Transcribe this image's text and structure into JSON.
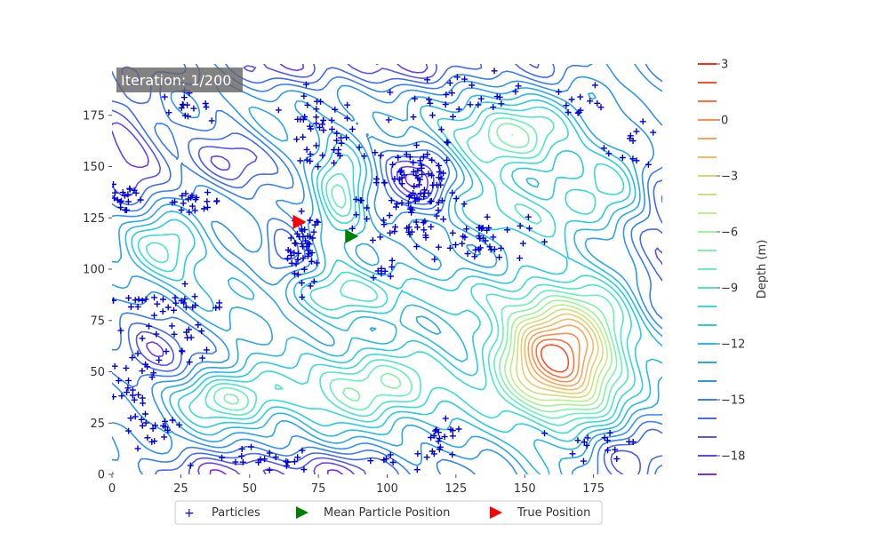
{
  "figure": {
    "iteration_text": "Iteration: 1/200"
  },
  "chart_data": {
    "type": "contour",
    "xlim": [
      0,
      200
    ],
    "ylim": [
      0,
      200
    ],
    "x_ticks": [
      0,
      25,
      50,
      75,
      100,
      125,
      150,
      175
    ],
    "y_ticks": [
      0,
      25,
      50,
      75,
      100,
      125,
      150,
      175
    ],
    "colorbar": {
      "label": "Depth (m)",
      "levels": [
        3,
        2,
        1,
        0,
        -1,
        -2,
        -3,
        -4,
        -5,
        -6,
        -7,
        -8,
        -9,
        -10,
        -11,
        -12,
        -13,
        -14,
        -15,
        -16,
        -17,
        -18,
        -19
      ],
      "labeled_ticks": [
        3,
        0,
        -3,
        -6,
        -9,
        -12,
        -15,
        -18
      ],
      "colormap": "rainbow",
      "cmap_colors": [
        "#ff2d16",
        "#ff8a46",
        "#f2c46d",
        "#b7f38a",
        "#66f2b8",
        "#29d2dc",
        "#2b9ef0",
        "#4466f5",
        "#7b2cf0"
      ]
    },
    "contour_levels_plot": [
      -19,
      -18,
      -17,
      -16,
      -15,
      -14,
      -13,
      -12,
      -11,
      -10,
      -9,
      -8,
      -7,
      -6,
      -5,
      -4,
      -3,
      -2,
      -1,
      0,
      1,
      2
    ],
    "surface_features": [
      {
        "type": "peak",
        "x": 163,
        "y": 58,
        "amp": 15.5,
        "sx": 16,
        "sy": 22
      },
      {
        "type": "peak",
        "x": 95,
        "y": 43,
        "amp": 6.5,
        "sx": 22,
        "sy": 13
      },
      {
        "type": "peak",
        "x": 43,
        "y": 37,
        "amp": 5.5,
        "sx": 14,
        "sy": 9
      },
      {
        "type": "peak",
        "x": 145,
        "y": 128,
        "amp": 4,
        "sx": 18,
        "sy": 10
      },
      {
        "type": "peak",
        "x": 142,
        "y": 165,
        "amp": 7,
        "sx": 16,
        "sy": 12
      },
      {
        "type": "peak",
        "x": 83,
        "y": 135,
        "amp": 5,
        "sx": 6,
        "sy": 22
      },
      {
        "type": "peak",
        "x": 20,
        "y": 110,
        "amp": 4.5,
        "sx": 10,
        "sy": 12
      },
      {
        "type": "peak",
        "x": 180,
        "y": 140,
        "amp": 3,
        "sx": 14,
        "sy": 14
      },
      {
        "type": "peak",
        "x": 95,
        "y": 88,
        "amp": 4,
        "sx": 30,
        "sy": 8
      },
      {
        "type": "pit",
        "x": 42,
        "y": 152,
        "amp": 5,
        "sx": 11,
        "sy": 10
      },
      {
        "type": "pit",
        "x": 62,
        "y": 110,
        "amp": 4,
        "sx": 6,
        "sy": 11
      },
      {
        "type": "pit",
        "x": 112,
        "y": 145,
        "amp": 5,
        "sx": 10,
        "sy": 12
      },
      {
        "type": "pit",
        "x": 15,
        "y": 60,
        "amp": 5,
        "sx": 10,
        "sy": 11
      },
      {
        "type": "pit",
        "x": 5,
        "y": 160,
        "amp": 5,
        "sx": 10,
        "sy": 22
      },
      {
        "type": "pit",
        "x": 60,
        "y": 0,
        "amp": 5,
        "sx": 40,
        "sy": 8
      },
      {
        "type": "pit",
        "x": 190,
        "y": 10,
        "amp": 4,
        "sx": 12,
        "sy": 12
      },
      {
        "type": "pit",
        "x": 200,
        "y": 120,
        "amp": 4,
        "sx": 8,
        "sy": 30
      },
      {
        "type": "pit",
        "x": 90,
        "y": 200,
        "amp": 4,
        "sx": 60,
        "sy": 8
      }
    ],
    "particles": {
      "name": "Particles",
      "marker": "+",
      "color": "#0000dd",
      "clusters": [
        {
          "x": 70,
          "y": 110,
          "sx": 3,
          "sy": 9,
          "n": 50
        },
        {
          "x": 75,
          "y": 165,
          "sx": 7,
          "sy": 10,
          "n": 45
        },
        {
          "x": 110,
          "y": 138,
          "sx": 8,
          "sy": 16,
          "n": 110
        },
        {
          "x": 135,
          "y": 115,
          "sx": 8,
          "sy": 6,
          "n": 35
        },
        {
          "x": 130,
          "y": 185,
          "sx": 10,
          "sy": 5,
          "n": 25
        },
        {
          "x": 5,
          "y": 135,
          "sx": 4,
          "sy": 5,
          "n": 18
        },
        {
          "x": 30,
          "y": 133,
          "sx": 5,
          "sy": 2,
          "n": 20
        },
        {
          "x": 25,
          "y": 180,
          "sx": 5,
          "sy": 3,
          "n": 15
        },
        {
          "x": 20,
          "y": 60,
          "sx": 12,
          "sy": 12,
          "n": 30
        },
        {
          "x": 10,
          "y": 85,
          "sx": 7,
          "sy": 3,
          "n": 12
        },
        {
          "x": 30,
          "y": 83,
          "sx": 8,
          "sy": 3,
          "n": 14
        },
        {
          "x": 8,
          "y": 40,
          "sx": 3,
          "sy": 8,
          "n": 15
        },
        {
          "x": 15,
          "y": 20,
          "sx": 6,
          "sy": 5,
          "n": 18
        },
        {
          "x": 55,
          "y": 7,
          "sx": 10,
          "sy": 3,
          "n": 20
        },
        {
          "x": 120,
          "y": 15,
          "sx": 4,
          "sy": 5,
          "n": 20
        },
        {
          "x": 100,
          "y": 7,
          "sx": 6,
          "sy": 2,
          "n": 6
        },
        {
          "x": 180,
          "y": 15,
          "sx": 8,
          "sy": 5,
          "n": 15
        },
        {
          "x": 170,
          "y": 182,
          "sx": 5,
          "sy": 4,
          "n": 12
        },
        {
          "x": 190,
          "y": 160,
          "sx": 5,
          "sy": 5,
          "n": 12
        },
        {
          "x": 100,
          "y": 100,
          "sx": 3,
          "sy": 2,
          "n": 6
        },
        {
          "x": 90,
          "y": 128,
          "sx": 2,
          "sy": 4,
          "n": 6
        }
      ]
    },
    "mean_particle_position": {
      "name": "Mean Particle Position",
      "x": 87,
      "y": 116,
      "marker": "triangle-right",
      "color": "#008000"
    },
    "true_position": {
      "name": "True Position",
      "x": 68,
      "y": 123,
      "marker": "triangle-right",
      "color": "#ff0000"
    },
    "legend": {
      "placement": "bottom-center",
      "entries": [
        "Particles",
        "Mean Particle Position",
        "True Position"
      ]
    }
  }
}
